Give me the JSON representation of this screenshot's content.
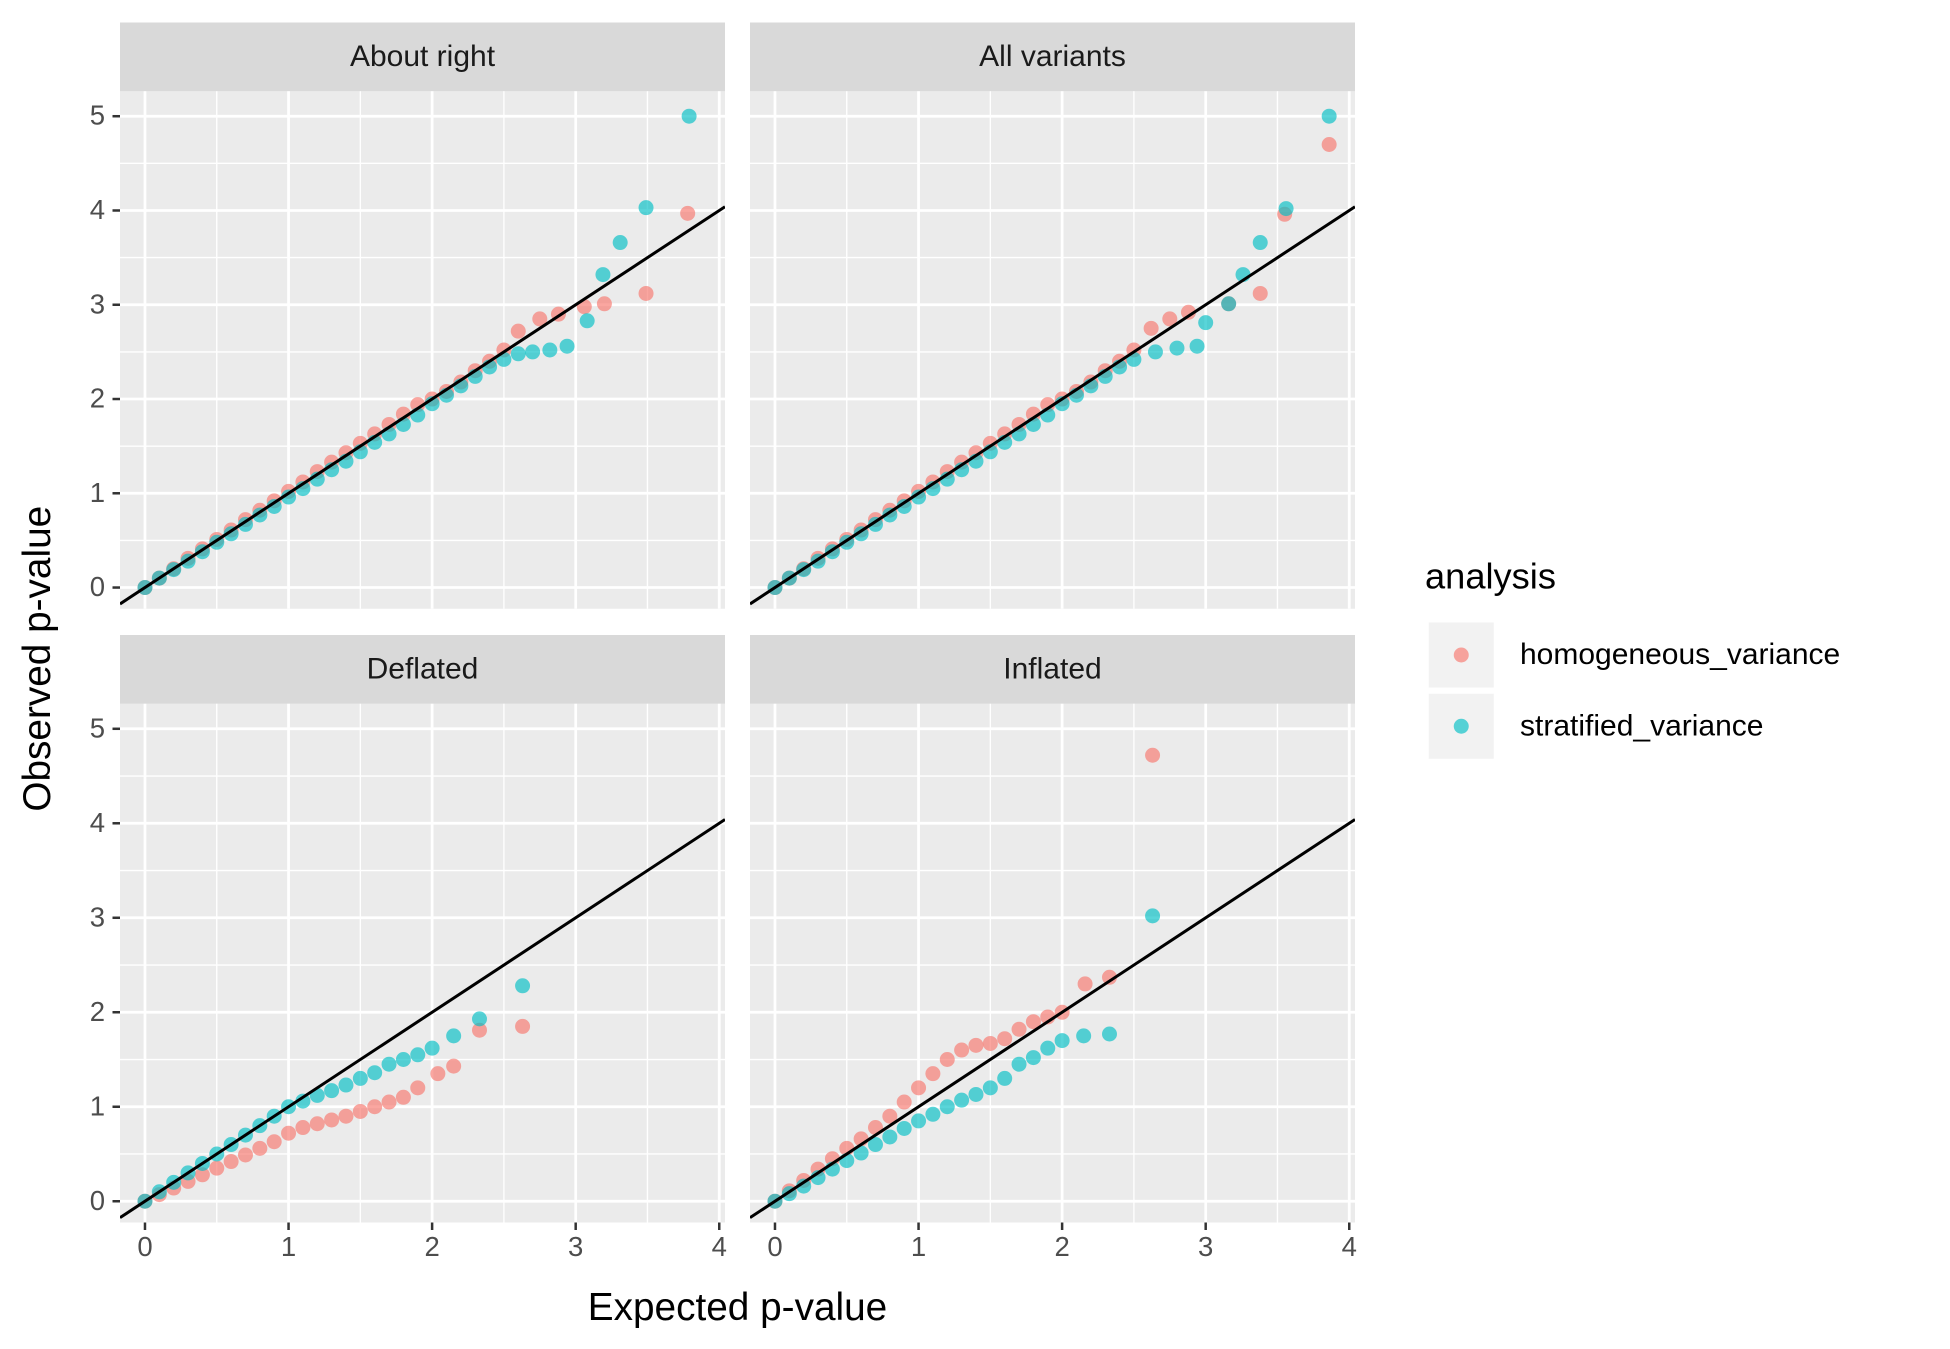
{
  "chart_data": {
    "type": "scatter",
    "xlabel": "Expected p-value",
    "ylabel": "Observed p-value",
    "legend": {
      "title": "analysis",
      "position": "right"
    },
    "grid": true,
    "xlim": [
      -0.174,
      4.04
    ],
    "ylim": [
      -0.225,
      5.265
    ],
    "xticks": [
      0,
      1,
      2,
      3,
      4
    ],
    "yticks": [
      0,
      1,
      2,
      3,
      4,
      5
    ],
    "xminor": [
      0.5,
      1.5,
      2.5,
      3.5
    ],
    "yminor": [
      0.5,
      1.5,
      2.5,
      3.5,
      4.5
    ],
    "reference_line": {
      "intercept": 0,
      "slope": 1,
      "color": "#000000"
    },
    "series": [
      {
        "name": "homogeneous_variance",
        "color": "#F8766D"
      },
      {
        "name": "stratified_variance",
        "color": "#00BFC4"
      }
    ],
    "panels": [
      {
        "title": "About right",
        "series": [
          {
            "x": [
              0,
              0.1,
              0.2,
              0.3,
              0.4,
              0.5,
              0.6,
              0.7,
              0.8,
              0.9,
              1.0,
              1.1,
              1.2,
              1.3,
              1.4,
              1.5,
              1.6,
              1.7,
              1.8,
              1.9,
              2.0,
              2.1,
              2.2,
              2.3,
              2.4,
              2.5,
              2.6,
              2.75,
              2.88,
              3.06,
              3.2,
              3.49,
              3.78
            ],
            "y": [
              0,
              0.1,
              0.2,
              0.31,
              0.41,
              0.51,
              0.61,
              0.72,
              0.82,
              0.92,
              1.02,
              1.12,
              1.23,
              1.33,
              1.43,
              1.53,
              1.63,
              1.73,
              1.84,
              1.94,
              2.0,
              2.08,
              2.18,
              2.3,
              2.4,
              2.52,
              2.72,
              2.85,
              2.9,
              2.98,
              3.01,
              3.12,
              3.97
            ]
          },
          {
            "x": [
              0,
              0.1,
              0.2,
              0.3,
              0.4,
              0.5,
              0.6,
              0.7,
              0.8,
              0.9,
              1.0,
              1.1,
              1.2,
              1.3,
              1.4,
              1.5,
              1.6,
              1.7,
              1.8,
              1.9,
              2.0,
              2.1,
              2.2,
              2.3,
              2.4,
              2.5,
              2.6,
              2.7,
              2.82,
              2.94,
              3.08,
              3.19,
              3.31,
              3.49,
              3.79
            ],
            "y": [
              0,
              0.1,
              0.19,
              0.28,
              0.38,
              0.48,
              0.57,
              0.67,
              0.77,
              0.86,
              0.96,
              1.05,
              1.15,
              1.25,
              1.34,
              1.44,
              1.54,
              1.63,
              1.73,
              1.83,
              1.95,
              2.04,
              2.14,
              2.24,
              2.34,
              2.42,
              2.48,
              2.5,
              2.52,
              2.56,
              2.83,
              3.32,
              3.66,
              4.03,
              5.0
            ]
          }
        ]
      },
      {
        "title": "All variants",
        "series": [
          {
            "x": [
              0,
              0.1,
              0.2,
              0.3,
              0.4,
              0.5,
              0.6,
              0.7,
              0.8,
              0.9,
              1.0,
              1.1,
              1.2,
              1.3,
              1.4,
              1.5,
              1.6,
              1.7,
              1.8,
              1.9,
              2.0,
              2.1,
              2.2,
              2.3,
              2.4,
              2.5,
              2.62,
              2.75,
              2.88,
              3.16,
              3.38,
              3.55,
              3.86
            ],
            "y": [
              0,
              0.1,
              0.2,
              0.31,
              0.41,
              0.51,
              0.61,
              0.72,
              0.82,
              0.92,
              1.02,
              1.12,
              1.23,
              1.33,
              1.43,
              1.53,
              1.63,
              1.73,
              1.84,
              1.94,
              2.0,
              2.08,
              2.18,
              2.3,
              2.4,
              2.52,
              2.75,
              2.85,
              2.92,
              3.01,
              3.12,
              3.96,
              4.7
            ]
          },
          {
            "x": [
              0,
              0.1,
              0.2,
              0.3,
              0.4,
              0.5,
              0.6,
              0.7,
              0.8,
              0.9,
              1.0,
              1.1,
              1.2,
              1.3,
              1.4,
              1.5,
              1.6,
              1.7,
              1.8,
              1.9,
              2.0,
              2.1,
              2.2,
              2.3,
              2.4,
              2.5,
              2.65,
              2.8,
              2.94,
              3.0,
              3.16,
              3.26,
              3.38,
              3.56,
              3.86
            ],
            "y": [
              0,
              0.1,
              0.19,
              0.28,
              0.38,
              0.48,
              0.57,
              0.67,
              0.77,
              0.86,
              0.96,
              1.05,
              1.15,
              1.25,
              1.34,
              1.44,
              1.54,
              1.63,
              1.73,
              1.83,
              1.95,
              2.04,
              2.14,
              2.24,
              2.34,
              2.42,
              2.5,
              2.54,
              2.56,
              2.81,
              3.01,
              3.32,
              3.66,
              4.02,
              5.0
            ]
          }
        ]
      },
      {
        "title": "Deflated",
        "series": [
          {
            "x": [
              0,
              0.1,
              0.2,
              0.3,
              0.4,
              0.5,
              0.6,
              0.7,
              0.8,
              0.9,
              1.0,
              1.1,
              1.2,
              1.3,
              1.4,
              1.5,
              1.6,
              1.7,
              1.8,
              1.9,
              2.04,
              2.15,
              2.33,
              2.63
            ],
            "y": [
              0,
              0.07,
              0.14,
              0.21,
              0.28,
              0.35,
              0.42,
              0.49,
              0.56,
              0.63,
              0.72,
              0.78,
              0.82,
              0.86,
              0.9,
              0.95,
              1.0,
              1.05,
              1.1,
              1.2,
              1.35,
              1.43,
              1.81,
              1.85
            ]
          },
          {
            "x": [
              0,
              0.1,
              0.2,
              0.3,
              0.4,
              0.5,
              0.6,
              0.7,
              0.8,
              0.9,
              1.0,
              1.1,
              1.2,
              1.3,
              1.4,
              1.5,
              1.6,
              1.7,
              1.8,
              1.9,
              2.0,
              2.15,
              2.33,
              2.63
            ],
            "y": [
              0,
              0.1,
              0.2,
              0.3,
              0.4,
              0.5,
              0.6,
              0.7,
              0.8,
              0.9,
              1.0,
              1.06,
              1.12,
              1.17,
              1.23,
              1.3,
              1.36,
              1.45,
              1.5,
              1.55,
              1.62,
              1.75,
              1.93,
              2.28
            ]
          }
        ]
      },
      {
        "title": "Inflated",
        "series": [
          {
            "x": [
              0,
              0.1,
              0.2,
              0.3,
              0.4,
              0.5,
              0.6,
              0.7,
              0.8,
              0.9,
              1.0,
              1.1,
              1.2,
              1.3,
              1.4,
              1.5,
              1.6,
              1.7,
              1.8,
              1.9,
              2.0,
              2.16,
              2.33,
              2.63
            ],
            "y": [
              0,
              0.11,
              0.22,
              0.34,
              0.45,
              0.56,
              0.66,
              0.78,
              0.9,
              1.05,
              1.2,
              1.35,
              1.5,
              1.6,
              1.65,
              1.67,
              1.72,
              1.82,
              1.9,
              1.95,
              2.0,
              2.3,
              2.37,
              4.72
            ]
          },
          {
            "x": [
              0,
              0.1,
              0.2,
              0.3,
              0.4,
              0.5,
              0.6,
              0.7,
              0.8,
              0.9,
              1.0,
              1.1,
              1.2,
              1.3,
              1.4,
              1.5,
              1.6,
              1.7,
              1.8,
              1.9,
              2.0,
              2.15,
              2.33,
              2.63
            ],
            "y": [
              0,
              0.08,
              0.16,
              0.25,
              0.34,
              0.43,
              0.51,
              0.6,
              0.68,
              0.77,
              0.85,
              0.92,
              1.0,
              1.07,
              1.13,
              1.2,
              1.3,
              1.45,
              1.52,
              1.62,
              1.7,
              1.75,
              1.77,
              3.02
            ]
          }
        ]
      }
    ]
  }
}
